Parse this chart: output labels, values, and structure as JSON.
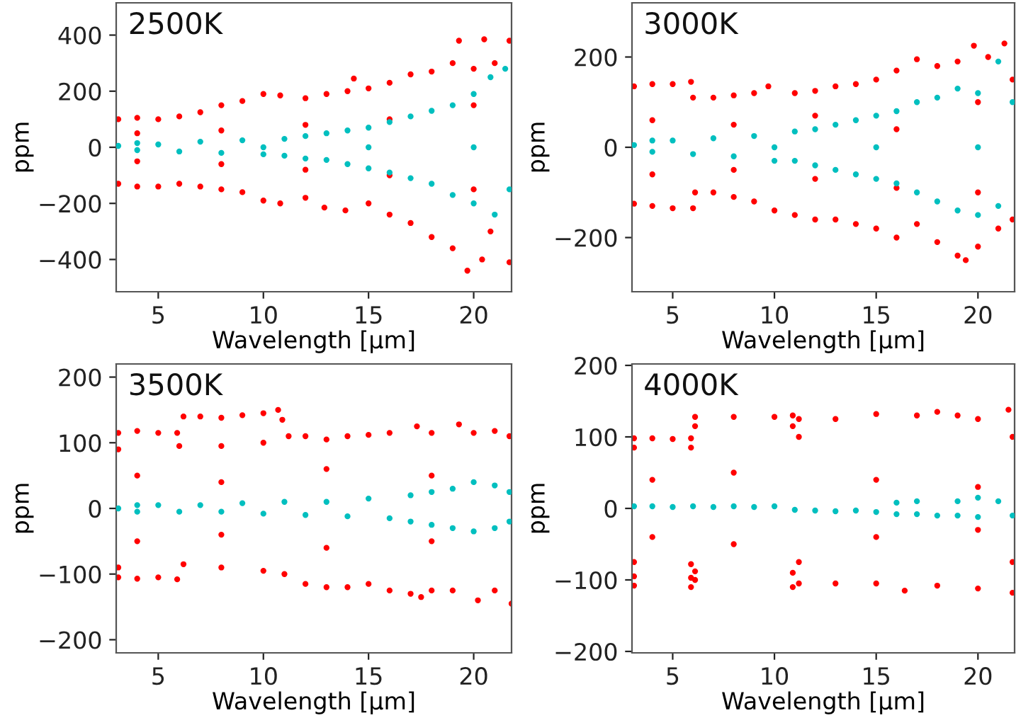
{
  "chart_data": [
    {
      "type": "scatter",
      "title": "2500K",
      "xlabel": "Wavelength [µm]",
      "ylabel": "ppm",
      "xlim": [
        3,
        21.8
      ],
      "ylim": [
        -515,
        515
      ],
      "xticks": [
        5,
        10,
        15,
        20
      ],
      "yticks": [
        -400,
        -200,
        0,
        200,
        400
      ],
      "marker": "circle",
      "grid": false,
      "series": [
        {
          "color": "#ff0000",
          "x": [
            3.1,
            4,
            5,
            6,
            7,
            8,
            9,
            10,
            10.8,
            12,
            13,
            14,
            14.3,
            15,
            16,
            17,
            18,
            19,
            19.3,
            20,
            20.5,
            21,
            21.7,
            3.1,
            4,
            5,
            6,
            7,
            8,
            9,
            10,
            10.8,
            12,
            12.9,
            13.9,
            15,
            16,
            17,
            18,
            19,
            19.7,
            20.4,
            20.8,
            21.7,
            4,
            4,
            8,
            8,
            12,
            12,
            16,
            16,
            20,
            20
          ],
          "values": [
            100,
            105,
            100,
            110,
            125,
            150,
            165,
            190,
            185,
            175,
            190,
            200,
            245,
            210,
            230,
            260,
            270,
            300,
            380,
            280,
            385,
            300,
            380,
            -130,
            -140,
            -140,
            -130,
            -140,
            -150,
            -160,
            -190,
            -200,
            -180,
            -215,
            -225,
            -200,
            -240,
            -270,
            -320,
            -360,
            -440,
            -400,
            -300,
            -410,
            50,
            -50,
            60,
            -60,
            80,
            -80,
            100,
            -100,
            150,
            -150
          ]
        },
        {
          "color": "#00bfbf",
          "x": [
            3.1,
            4,
            4,
            5,
            6,
            7,
            8,
            9,
            10,
            11,
            11,
            12,
            12,
            13,
            13,
            14,
            14,
            15,
            15,
            16,
            16,
            17,
            17,
            18,
            18,
            19,
            19,
            20,
            20,
            20.8,
            21,
            21.5,
            21.7,
            10,
            15,
            20
          ],
          "values": [
            5,
            15,
            -10,
            10,
            -15,
            20,
            -20,
            25,
            -25,
            30,
            -30,
            40,
            -40,
            50,
            -45,
            60,
            -60,
            70,
            -75,
            90,
            -90,
            110,
            -110,
            130,
            -130,
            150,
            -170,
            190,
            -200,
            250,
            -240,
            280,
            -150,
            0,
            0,
            0
          ]
        }
      ]
    },
    {
      "type": "scatter",
      "title": "3000K",
      "xlabel": "Wavelength [µm]",
      "ylabel": "ppm",
      "xlim": [
        3,
        21.8
      ],
      "ylim": [
        -320,
        320
      ],
      "xticks": [
        5,
        10,
        15,
        20
      ],
      "yticks": [
        -200,
        0,
        200
      ],
      "marker": "circle",
      "grid": false,
      "series": [
        {
          "color": "#ff0000",
          "x": [
            3.1,
            4,
            5,
            5.9,
            6,
            7,
            8,
            9,
            9.7,
            11,
            12,
            13,
            14,
            15,
            16,
            17,
            18,
            19,
            19.8,
            20.5,
            21.3,
            21.7,
            3.1,
            4,
            5,
            6,
            6.1,
            7,
            8,
            9,
            10,
            11,
            12,
            13,
            14,
            15,
            16,
            17,
            18,
            19,
            19.4,
            20,
            21,
            21.7,
            4,
            4,
            8,
            8,
            12,
            12,
            16,
            16,
            20,
            20
          ],
          "values": [
            135,
            140,
            140,
            145,
            110,
            110,
            115,
            120,
            135,
            120,
            125,
            135,
            140,
            150,
            170,
            195,
            180,
            190,
            225,
            200,
            230,
            150,
            -125,
            -130,
            -135,
            -135,
            -100,
            -100,
            -110,
            -120,
            -140,
            -150,
            -160,
            -160,
            -170,
            -180,
            -200,
            -170,
            -210,
            -240,
            -250,
            -220,
            -180,
            -160,
            60,
            -60,
            50,
            -50,
            70,
            -70,
            40,
            -90,
            100,
            -100
          ]
        },
        {
          "color": "#00bfbf",
          "x": [
            3.1,
            4,
            4,
            5,
            6,
            7,
            8,
            9,
            10,
            11,
            11,
            12,
            12,
            13,
            13,
            14,
            14,
            15,
            15,
            16,
            16,
            17,
            17,
            18,
            18,
            19,
            19,
            20,
            20,
            21,
            21,
            21.7,
            10,
            15,
            20
          ],
          "values": [
            5,
            15,
            -10,
            15,
            -15,
            20,
            -20,
            25,
            -30,
            35,
            -30,
            40,
            -40,
            50,
            -50,
            60,
            -60,
            70,
            -70,
            80,
            -80,
            100,
            -100,
            110,
            -120,
            130,
            -140,
            120,
            -150,
            190,
            -130,
            100,
            0,
            0,
            0
          ]
        }
      ]
    },
    {
      "type": "scatter",
      "title": "3500K",
      "xlabel": "Wavelength [µm]",
      "ylabel": "ppm",
      "xlim": [
        3,
        21.8
      ],
      "ylim": [
        -220,
        220
      ],
      "xticks": [
        5,
        10,
        15,
        20
      ],
      "yticks": [
        -200,
        -100,
        0,
        100,
        200
      ],
      "marker": "circle",
      "grid": false,
      "series": [
        {
          "color": "#ff0000",
          "x": [
            3.1,
            4,
            5,
            5.9,
            6.2,
            7,
            8,
            9,
            10,
            10.7,
            10.9,
            3.1,
            6,
            8,
            10,
            11.2,
            12,
            13,
            14,
            15,
            16,
            17.3,
            18,
            19.3,
            20,
            21,
            21.7,
            3.1,
            4,
            5,
            5.9,
            3.1,
            6.2,
            8,
            10,
            11,
            12,
            13,
            14,
            15,
            16,
            17,
            17.5,
            18,
            19,
            20.2,
            21,
            21.8,
            4,
            4,
            8,
            8,
            13,
            13,
            18,
            18
          ],
          "values": [
            115,
            118,
            115,
            115,
            140,
            140,
            138,
            142,
            145,
            150,
            135,
            90,
            95,
            95,
            100,
            110,
            110,
            105,
            110,
            112,
            115,
            125,
            115,
            128,
            115,
            118,
            110,
            -105,
            -107,
            -105,
            -108,
            -90,
            -85,
            -90,
            -95,
            -100,
            -115,
            -120,
            -120,
            -115,
            -125,
            -130,
            -135,
            -125,
            -125,
            -140,
            -125,
            -145,
            50,
            -50,
            40,
            -40,
            60,
            -60,
            50,
            -50
          ]
        },
        {
          "color": "#00bfbf",
          "x": [
            3.1,
            4,
            4,
            5,
            6,
            7,
            8,
            9,
            10,
            11,
            12,
            13,
            14,
            15,
            16,
            17,
            17,
            18,
            18,
            19,
            19,
            20,
            20,
            21,
            21,
            21.7,
            21.7
          ],
          "values": [
            0,
            5,
            -5,
            5,
            -5,
            5,
            -5,
            8,
            -8,
            10,
            -10,
            10,
            -12,
            15,
            -15,
            20,
            -20,
            25,
            -25,
            30,
            -30,
            40,
            -35,
            35,
            -30,
            25,
            -20
          ]
        }
      ]
    },
    {
      "type": "scatter",
      "title": "4000K",
      "xlabel": "Wavelength [µm]",
      "ylabel": "ppm",
      "xlim": [
        3,
        21.8
      ],
      "ylim": [
        -202,
        202
      ],
      "xticks": [
        5,
        10,
        15,
        20
      ],
      "yticks": [
        -200,
        -100,
        0,
        100,
        200
      ],
      "marker": "circle",
      "grid": false,
      "series": [
        {
          "color": "#ff0000",
          "x": [
            3.1,
            4,
            5,
            5.9,
            3.1,
            5.9,
            3.1,
            5.9,
            3.1,
            5.9,
            3.1,
            5.9,
            6.1,
            8,
            10,
            10.9,
            6.1,
            10.9,
            6.1,
            10.9,
            6.1,
            10.9,
            11.2,
            13,
            15,
            17,
            18,
            19,
            20,
            21.5,
            11.2,
            13,
            15,
            16.4,
            18,
            20,
            21.7,
            11.2,
            21.7,
            11.2,
            21.7,
            4,
            4,
            8,
            8,
            15,
            15,
            20,
            20
          ],
          "values": [
            98,
            98,
            97,
            98,
            85,
            85,
            -75,
            -78,
            -95,
            -97,
            -108,
            -110,
            128,
            128,
            128,
            130,
            115,
            115,
            -100,
            -110,
            -88,
            -90,
            125,
            125,
            132,
            130,
            135,
            130,
            125,
            138,
            -105,
            -105,
            -105,
            -115,
            -108,
            -112,
            -118,
            100,
            100,
            -75,
            -75,
            40,
            -40,
            50,
            -50,
            40,
            -40,
            30,
            -30
          ]
        },
        {
          "color": "#00bfbf",
          "x": [
            3.1,
            4,
            5,
            6,
            7,
            8,
            9,
            10,
            11,
            12,
            13,
            14,
            15,
            16,
            16,
            17,
            17,
            18,
            19,
            19,
            20,
            20,
            21,
            21.7
          ],
          "values": [
            3,
            3,
            2,
            3,
            2,
            3,
            2,
            3,
            -2,
            -3,
            -4,
            -3,
            -5,
            8,
            -8,
            10,
            -8,
            -10,
            10,
            -10,
            15,
            -12,
            10,
            -10
          ]
        }
      ]
    }
  ]
}
